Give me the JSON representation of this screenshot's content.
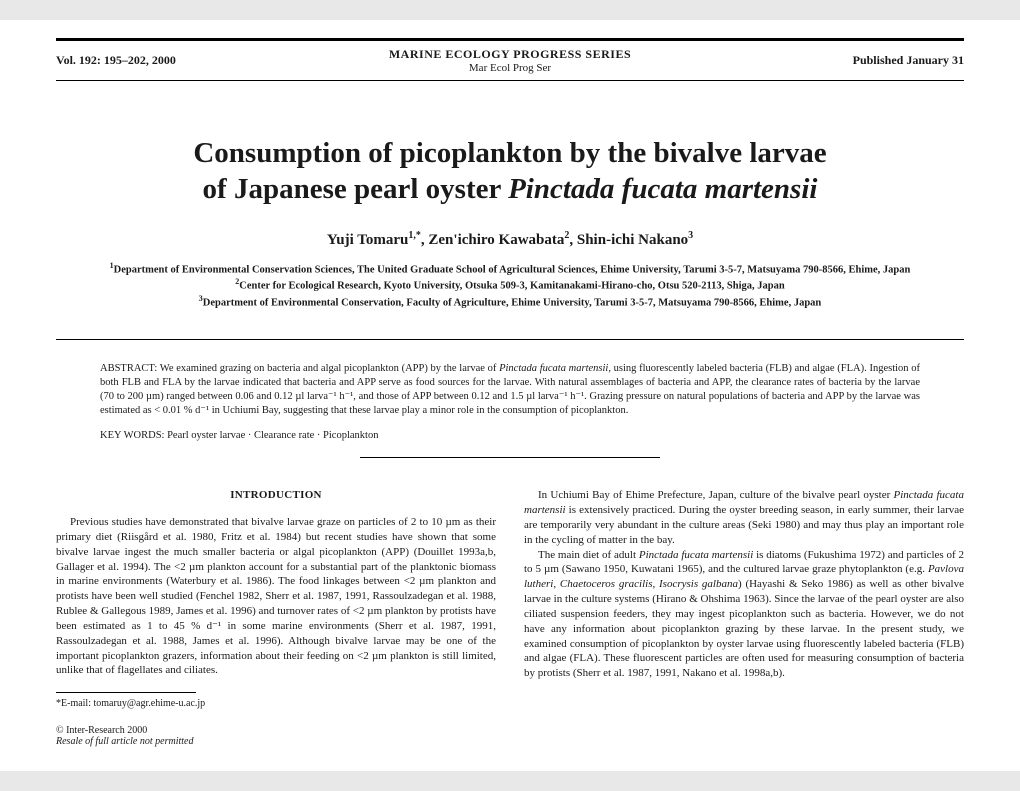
{
  "header": {
    "volume": "Vol. 192: 195–202, 2000",
    "series": "MARINE ECOLOGY PROGRESS SERIES",
    "abbr": "Mar Ecol Prog Ser",
    "published": "Published January 31"
  },
  "title_line1": "Consumption of picoplankton by the bivalve larvae",
  "title_line2_a": "of Japanese pearl oyster ",
  "title_line2_b": "Pinctada fucata martensii",
  "authors_html": "Yuji Tomaru",
  "author1_sup": "1,*",
  "author2": ", Zen'ichiro Kawabata",
  "author2_sup": "2",
  "author3": ", Shin-ichi Nakano",
  "author3_sup": "3",
  "aff1_sup": "1",
  "aff1": "Department of Environmental Conservation Sciences, The United Graduate School of Agricultural Sciences, Ehime University, Tarumi 3-5-7, Matsuyama 790-8566, Ehime, Japan",
  "aff2_sup": "2",
  "aff2": "Center for Ecological Research, Kyoto University, Otsuka 509-3, Kamitanakami-Hirano-cho, Otsu 520-2113, Shiga, Japan",
  "aff3_sup": "3",
  "aff3": "Department of Environmental Conservation, Faculty of Agriculture, Ehime University, Tarumi 3-5-7, Matsuyama 790-8566, Ehime, Japan",
  "abstract_lead": "ABSTRACT: ",
  "abstract_body_a": "We examined grazing on bacteria and algal picoplankton (APP) by the larvae of ",
  "abstract_species": "Pinctada fucata martensii",
  "abstract_body_b": ", using fluorescently labeled bacteria (FLB) and algae (FLA). Ingestion of both FLB and FLA by the larvae indicated that bacteria and APP serve as food sources for the larvae. With natural assemblages of bacteria and APP, the clearance rates of bacteria by the larvae (70 to 200 µm) ranged between 0.06 and 0.12 µl larva⁻¹ h⁻¹, and those of APP between 0.12 and 1.5 µl larva⁻¹ h⁻¹. Grazing pressure on natural populations of bacteria and APP by the larvae was estimated as < 0.01 % d⁻¹ in Uchiumi Bay, suggesting that these larvae play a minor role in the consumption of picoplankton.",
  "keywords_lead": "KEY WORDS:  ",
  "keywords_body": "Pearl oyster larvae · Clearance rate · Picoplankton",
  "intro_head": "INTRODUCTION",
  "col_left_p1": "Previous studies have demonstrated that bivalve larvae graze on particles of 2 to 10 µm as their primary diet (Riisgård et al. 1980, Fritz et al. 1984) but recent studies have shown that some bivalve larvae ingest the much smaller bacteria or algal picoplankton (APP) (Douillet 1993a,b, Gallager et al. 1994). The <2 µm plankton account for a substantial part of the planktonic biomass in marine environments (Waterbury et al. 1986). The food linkages between <2 µm plankton and protists have been well studied (Fenchel 1982, Sherr et al. 1987, 1991, Rassoulzadegan et al. 1988, Rublee & Gallegous 1989, James et al. 1996) and turnover rates of <2 µm plankton by protists have been estimated as 1 to 45 % d⁻¹ in some marine environments (Sherr et al. 1987, 1991, Rassoulzadegan et al. 1988, James et al. 1996). Although bivalve larvae may be one of the important picoplankton grazers, information about their feeding on <2 µm plankton is still limited, unlike that of flagellates and ciliates.",
  "col_right_p1_a": "In Uchiumi Bay of Ehime Prefecture, Japan, culture of the bivalve pearl oyster ",
  "col_right_p1_species": "Pinctada fucata martensii",
  "col_right_p1_b": " is extensively practiced. During the oyster breeding season, in early summer, their larvae are temporarily very abundant in the culture areas (Seki 1980) and may thus play an important role in the cycling of matter in the bay.",
  "col_right_p2_a": "The main diet of adult ",
  "col_right_p2_sp1": "Pinctada fucata martensii",
  "col_right_p2_b": " is diatoms (Fukushima 1972) and particles of 2 to 5 µm (Sawano 1950, Kuwatani 1965), and the cultured larvae graze phytoplankton (e.g. ",
  "col_right_p2_sp2": "Pavlova lutheri, Chaetoceros gracilis, Isocrysis galbana",
  "col_right_p2_c": ") (Hayashi & Seko 1986) as well as other bivalve larvae in the culture systems (Hirano & Ohshima 1963). Since the larvae of the pearl oyster are also ciliated suspension feeders, they may ingest picoplankton such as bacteria. However, we do not have any information about picoplankton grazing by these larvae. In the present study, we examined consumption of picoplankton by oyster larvae using fluorescently labeled bacteria (FLB) and algae (FLA). These fluorescent particles are often used for measuring consumption of bacteria by protists (Sherr et al. 1987, 1991, Nakano et al. 1998a,b).",
  "foot_lead": "*E-mail: ",
  "foot_email": "tomaruy@agr.ehime-u.ac.jp",
  "copyright_a": "© Inter-Research 2000",
  "copyright_b": "Resale of full article not permitted"
}
